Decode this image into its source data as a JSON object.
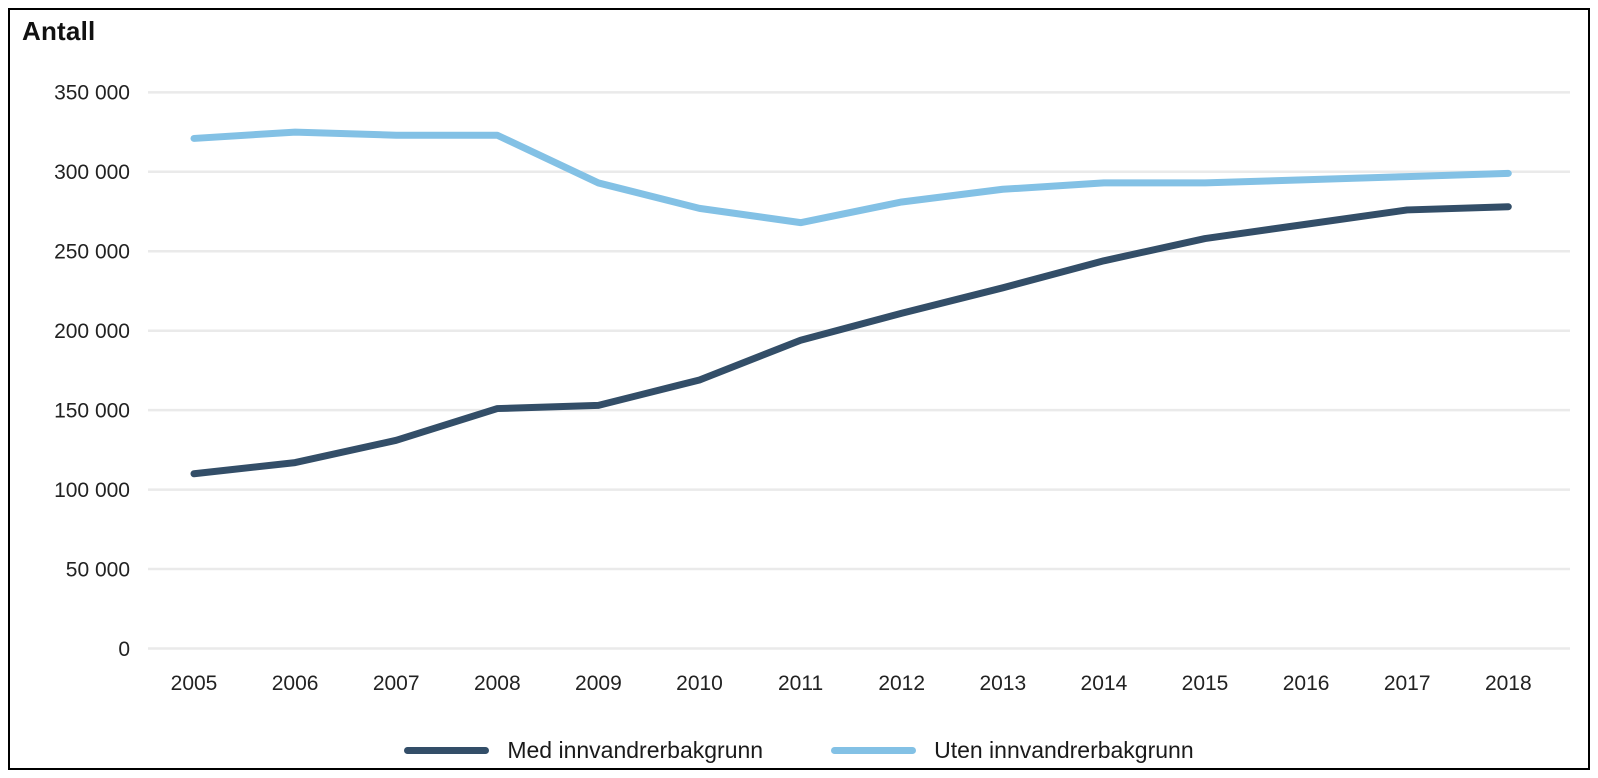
{
  "title": "Antall",
  "chart_data": {
    "type": "line",
    "title": "Antall",
    "xlabel": "",
    "ylabel": "Antall",
    "x": [
      2005,
      2006,
      2007,
      2008,
      2009,
      2010,
      2011,
      2012,
      2013,
      2014,
      2015,
      2016,
      2017,
      2018
    ],
    "series": [
      {
        "name": "Med innvandrerbakgrunn",
        "color": "#334e68",
        "values": [
          110000,
          117000,
          131000,
          151000,
          153000,
          169000,
          194000,
          211000,
          227000,
          244000,
          258000,
          267000,
          276000,
          278000
        ]
      },
      {
        "name": "Uten innvandrerbakgrunn",
        "color": "#83c1e5",
        "values": [
          321000,
          325000,
          323000,
          323000,
          293000,
          277000,
          268000,
          281000,
          289000,
          293000,
          293000,
          295000,
          297000,
          299000
        ]
      }
    ],
    "ylim": [
      0,
      350000
    ],
    "ytick_step": 50000,
    "ytick_labels": [
      "0",
      "50 000",
      "100 000",
      "150 000",
      "200 000",
      "250 000",
      "300 000",
      "350 000"
    ],
    "grid": "horizontal",
    "gridline_color": "#eaeaea",
    "axis_text_color": "#222222",
    "legend_position": "bottom"
  }
}
